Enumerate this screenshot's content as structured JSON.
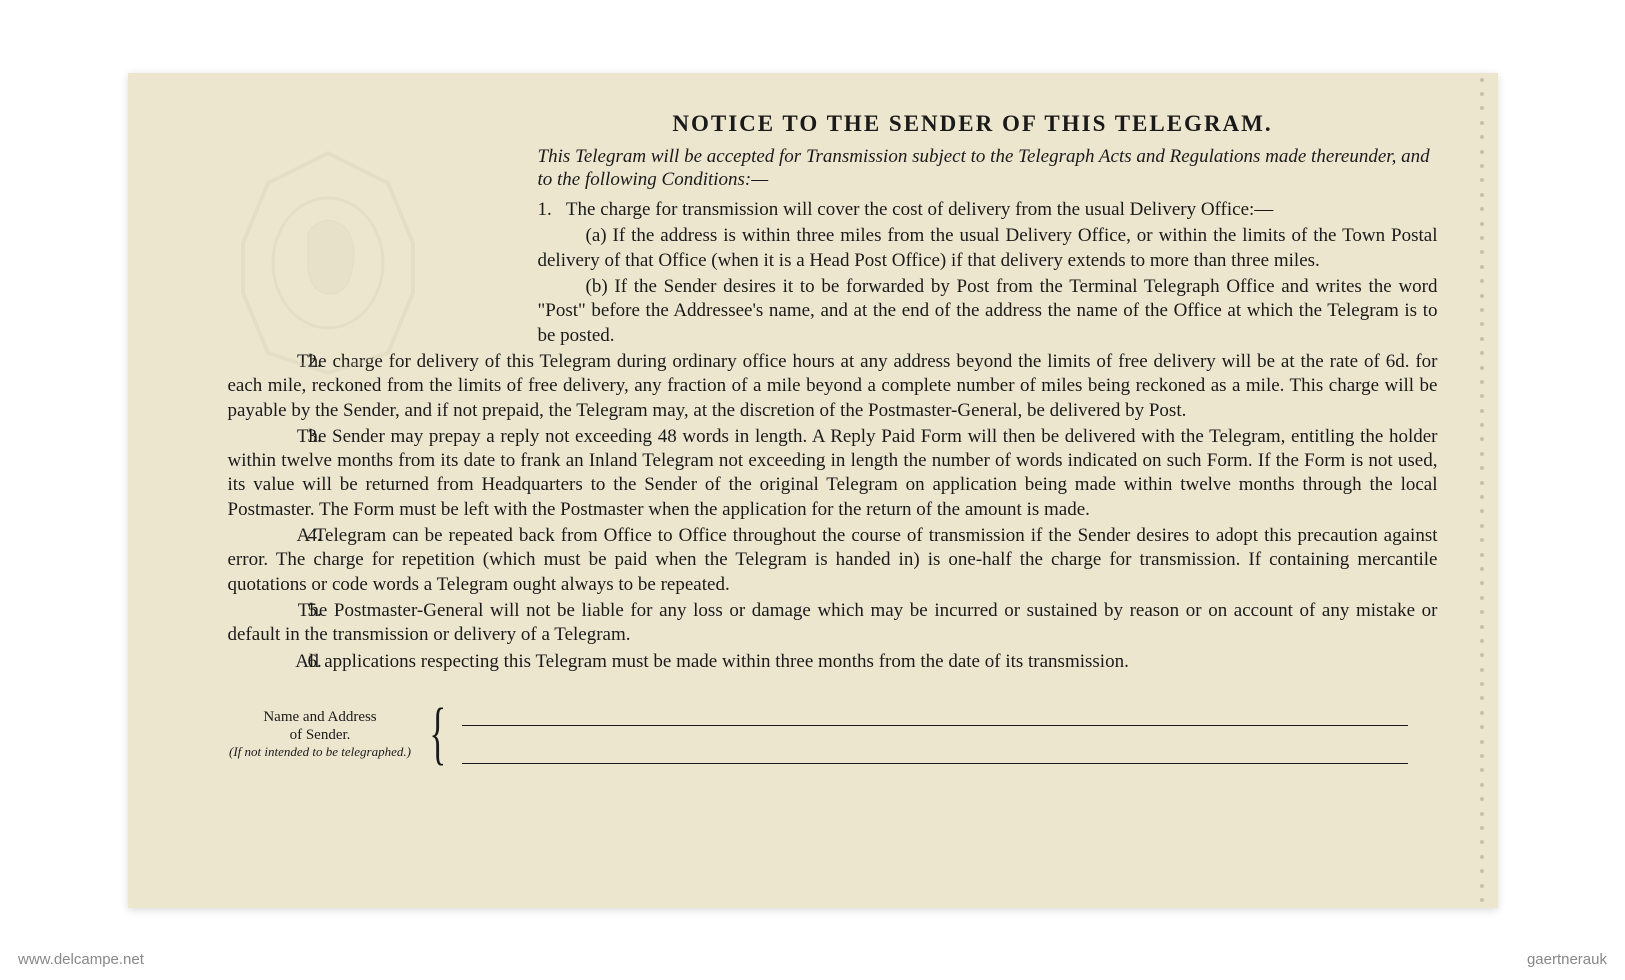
{
  "document": {
    "title": "NOTICE TO THE SENDER OF THIS TELEGRAM.",
    "preamble": "This Telegram will be accepted for Transmission subject to the Telegraph Acts and Regulations made thereunder, and to the following Conditions:—",
    "conditions": {
      "c1_intro": "The charge for transmission will cover the cost of delivery from the usual Delivery Office:—",
      "c1a": "(a) If the address is within three miles from the usual Delivery Office, or within the limits of the Town Postal delivery of that Office (when it is a Head Post Office) if that delivery extends to more than three miles.",
      "c1b": "(b) If the Sender desires it to be forwarded by Post from the Terminal Telegraph Office and writes the word \"Post\" before the Addressee's name, and at the end of the address the name of the Office at which the Telegram is to be posted.",
      "c2": "The charge for delivery of this Telegram during ordinary office hours at any address beyond the limits of free delivery will be at the rate of 6d. for each mile, reckoned from the limits of free delivery, any fraction of a mile beyond a complete number of miles being reckoned as a mile. This charge will be payable by the Sender, and if not prepaid, the Telegram may, at the discretion of the Postmaster-General, be delivered by Post.",
      "c3": "The Sender may prepay a reply not exceeding 48 words in length. A Reply Paid Form will then be delivered with the Telegram, entitling the holder within twelve months from its date to frank an Inland Telegram not exceeding in length the number of words indicated on such Form. If the Form is not used, its value will be returned from Headquarters to the Sender of the original Telegram on application being made within twelve months through the local Postmaster. The Form must be left with the Postmaster when the application for the return of the amount is made.",
      "c4": "A Telegram can be repeated back from Office to Office throughout the course of transmission if the Sender desires to adopt this precaution against error. The charge for repetition (which must be paid when the Telegram is handed in) is one-half the charge for transmission. If containing mercantile quotations or code words a Telegram ought always to be repeated.",
      "c5": "The Postmaster-General will not be liable for any loss or damage which may be incurred or sustained by reason or on account of any mistake or default in the transmission or delivery of a Telegram.",
      "c6": "All applications respecting this Telegram must be made within three months from the date of its transmission."
    },
    "numbers": {
      "n1": "1.",
      "n2": "2.",
      "n3": "3.",
      "n4": "4.",
      "n5": "5.",
      "n6": "6."
    },
    "sender_block": {
      "label_line1": "Name and Address",
      "label_line2": "of Sender.",
      "label_note": "(If not intended to be telegraphed.)"
    },
    "styling": {
      "background_color": "#ede6cf",
      "text_color": "#1a1a1a",
      "title_fontsize": 23,
      "body_fontsize": 19,
      "sender_label_fontsize": 15,
      "font_family": "Georgia, Times New Roman, serif",
      "perforation_count": 58
    },
    "watermarks": {
      "left": "www.delcampe.net",
      "right": "gaertnerauk"
    }
  }
}
